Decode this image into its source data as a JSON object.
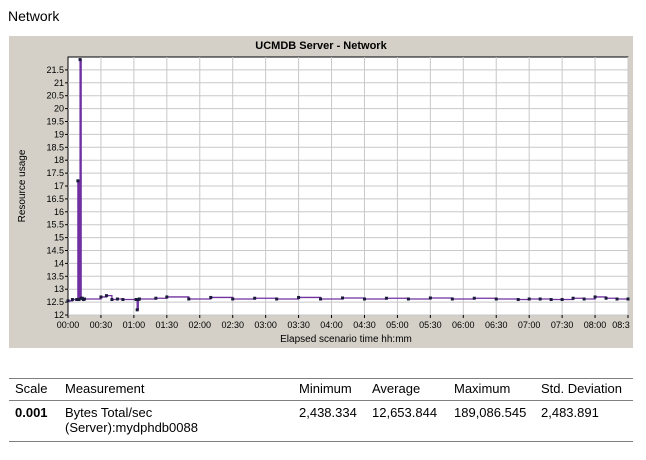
{
  "page": {
    "heading": "Network"
  },
  "chart_data": {
    "type": "line",
    "title": "UCMDB Server - Network",
    "xlabel": "Elapsed scenario time hh:mm",
    "ylabel": "Resource usage",
    "xlim": [
      0,
      510
    ],
    "ylim": [
      12,
      22
    ],
    "grid": true,
    "xticks": [
      "00:00",
      "00:30",
      "01:00",
      "01:30",
      "02:00",
      "02:30",
      "03:00",
      "03:30",
      "04:00",
      "04:30",
      "05:00",
      "05:30",
      "06:00",
      "06:30",
      "07:00",
      "07:30",
      "08:00",
      "08:3"
    ],
    "yticks": [
      "12",
      "12.5",
      "13",
      "13.5",
      "14",
      "14.5",
      "15",
      "15.5",
      "16",
      "16.5",
      "17",
      "17.5",
      "18",
      "18.5",
      "19",
      "19.5",
      "20",
      "20.5",
      "21",
      "21.5"
    ],
    "series": [
      {
        "name": "Bytes Total/sec (Server):mydphdb0088",
        "color": "#7030a0",
        "x": [
          0,
          4,
          8,
          9,
          10,
          11,
          12,
          13,
          14,
          15,
          30,
          35,
          40,
          45,
          50,
          62,
          63,
          64,
          65,
          80,
          90,
          110,
          130,
          150,
          170,
          190,
          210,
          230,
          250,
          270,
          290,
          310,
          330,
          350,
          370,
          390,
          410,
          420,
          430,
          440,
          450,
          460,
          470,
          480,
          490,
          500,
          510
        ],
        "y": [
          12.55,
          12.6,
          12.6,
          17.2,
          12.6,
          21.9,
          12.65,
          12.65,
          12.6,
          12.62,
          12.7,
          12.75,
          12.6,
          12.62,
          12.6,
          12.6,
          12.2,
          12.6,
          12.62,
          12.65,
          12.7,
          12.62,
          12.68,
          12.62,
          12.65,
          12.62,
          12.68,
          12.62,
          12.66,
          12.62,
          12.65,
          12.62,
          12.66,
          12.62,
          12.65,
          12.62,
          12.6,
          12.62,
          12.62,
          12.6,
          12.6,
          12.65,
          12.62,
          12.7,
          12.65,
          12.62,
          12.62
        ]
      }
    ]
  },
  "table": {
    "headers": {
      "scale": "Scale",
      "measurement": "Measurement",
      "minimum": "Minimum",
      "average": "Average",
      "maximum": "Maximum",
      "std": "Std. Deviation"
    },
    "rows": [
      {
        "scale": "0.001",
        "measurement": "Bytes Total/sec (Server):mydphdb0088",
        "minimum": "2,438.334",
        "average": "12,653.844",
        "maximum": "189,086.545",
        "std": "2,483.891"
      }
    ]
  }
}
